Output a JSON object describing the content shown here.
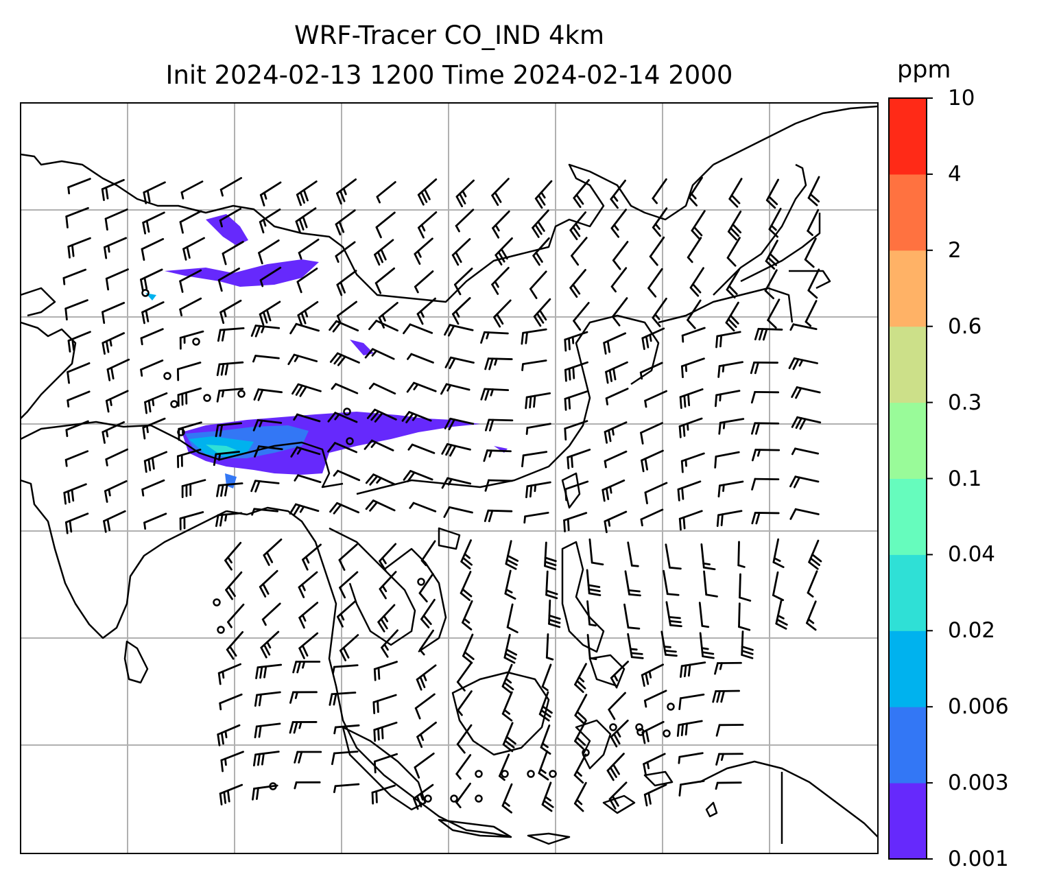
{
  "title": {
    "line1": "WRF-Tracer CO_IND 4km",
    "line2": "Init 2024-02-13 1200 Time 2024-02-14 2000"
  },
  "colorbar": {
    "units": "ppm",
    "ticks": [
      "0.001",
      "0.003",
      "0.006",
      "0.02",
      "0.04",
      "0.1",
      "0.3",
      "0.6",
      "2",
      "4",
      "10"
    ],
    "colors": [
      "#6629fc",
      "#3377f5",
      "#00b2ee",
      "#2fe0d6",
      "#66fcbd",
      "#99fb99",
      "#cce089",
      "#ffb266",
      "#ff7240",
      "#ff2a17"
    ]
  },
  "map": {
    "background": "#ffffff",
    "gridline_color": "#b0b0b0",
    "coastline_color": "#000000",
    "tracer_plume": "CO_IND concentrations over northern India / Himalaya region",
    "wind_barbs": "black barbs over land and ocean"
  }
}
